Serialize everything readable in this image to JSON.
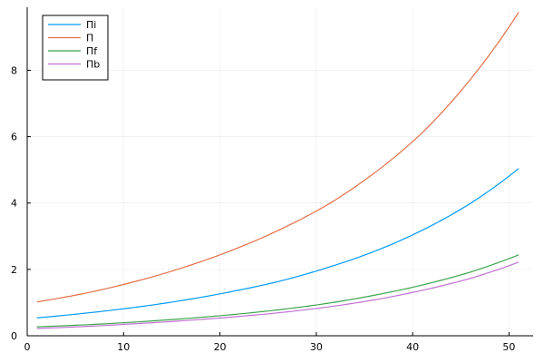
{
  "chart_data": {
    "type": "line",
    "title": "",
    "xlabel": "",
    "ylabel": "",
    "xlim": [
      0,
      52.5
    ],
    "ylim": [
      0,
      9.9
    ],
    "x_ticks": [
      0,
      10,
      20,
      30,
      40,
      50
    ],
    "y_ticks": [
      0,
      2,
      4,
      6,
      8
    ],
    "grid": true,
    "legend_position": "top-left",
    "x": [
      1,
      6,
      11,
      16,
      21,
      26,
      31,
      36,
      41,
      46,
      51
    ],
    "series": [
      {
        "name": "Πi",
        "color": "#009AFA",
        "values": [
          0.54,
          0.68,
          0.85,
          1.06,
          1.32,
          1.63,
          2.04,
          2.54,
          3.18,
          3.99,
          5.04
        ]
      },
      {
        "name": "Π",
        "color": "#E36F47",
        "values": [
          1.02,
          1.28,
          1.62,
          2.04,
          2.55,
          3.17,
          3.92,
          4.9,
          6.12,
          7.73,
          9.75
        ]
      },
      {
        "name": "Πf",
        "color": "#3EA44E",
        "values": [
          0.27,
          0.33,
          0.41,
          0.51,
          0.63,
          0.78,
          0.97,
          1.22,
          1.53,
          1.92,
          2.44
        ]
      },
      {
        "name": "Πb",
        "color": "#C271D2",
        "values": [
          0.22,
          0.28,
          0.36,
          0.45,
          0.56,
          0.69,
          0.86,
          1.08,
          1.37,
          1.73,
          2.22
        ]
      }
    ]
  }
}
